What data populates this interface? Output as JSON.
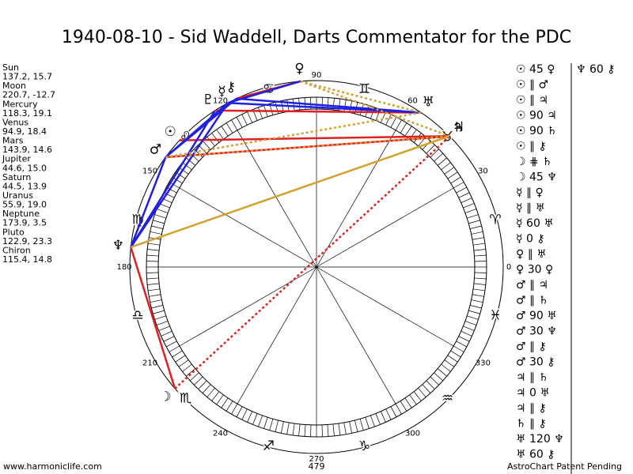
{
  "title": "1940-08-10 - Sid Waddell, Darts Commentator for the PDC",
  "planets": [
    {
      "name": "Sun",
      "glyph": "☉",
      "position": "137.2, 15.7"
    },
    {
      "name": "Moon",
      "glyph": "☽",
      "position": "220.7, -12.7"
    },
    {
      "name": "Mercury",
      "glyph": "☿",
      "position": "118.3, 19.1"
    },
    {
      "name": "Venus",
      "glyph": "♀",
      "position": "94.9, 18.4"
    },
    {
      "name": "Mars",
      "glyph": "♂",
      "position": "143.9, 14.6"
    },
    {
      "name": "Jupiter",
      "glyph": "♃",
      "position": "44.6, 15.0"
    },
    {
      "name": "Saturn",
      "glyph": "♄",
      "position": "44.5, 13.9"
    },
    {
      "name": "Uranus",
      "glyph": "♅",
      "position": "55.9, 19.0"
    },
    {
      "name": "Neptune",
      "glyph": "♆",
      "position": "173.9, 3.5"
    },
    {
      "name": "Pluto",
      "glyph": "♇",
      "position": "122.9, 23.3"
    },
    {
      "name": "Chiron",
      "glyph": "⚷",
      "position": "115.4, 14.8"
    }
  ],
  "degrees": [
    0,
    30,
    60,
    90,
    120,
    150,
    180,
    210,
    240,
    270,
    300,
    330
  ],
  "signs": [
    "♈",
    "♉",
    "♊",
    "♋",
    "♌",
    "♍",
    "♎",
    "♏",
    "♐",
    "♑",
    "♒",
    "♓"
  ],
  "aspects": {
    "column1": [
      "☉ 45 ♀",
      "☉ ∥ ♂",
      "☉ ∥ ♃",
      "☉ 90 ♃",
      "☉ 90 ♄",
      "☉ ∥ ⚷",
      "☽ ⋕ ♄",
      "☽ 45 ♆",
      "☿ ∥ ♀",
      "☿ ∥ ♅",
      "☿ 60 ♅",
      "☿ 0 ⚷",
      "♀ ∥ ♅",
      "♀ 30 ♀",
      "♂ ∥ ♃",
      "♂ ∥ ♄",
      "♂ 90 ♅",
      "♂ 30 ♆",
      "♂ ∥ ⚷",
      "♂ 30 ⚷",
      "♃ ∥ ♄",
      "♃ 0 ♅",
      "♃ ∥ ⚷",
      "♄ ∥ ⚷",
      "♅ 120 ♆",
      "♅ 60 ⚷"
    ],
    "column2": [
      "♆ 60 ⚷"
    ]
  },
  "footer": {
    "site": "www.harmoniclife.com",
    "number": "479",
    "notice": "AstroChart Patent Pending"
  }
}
